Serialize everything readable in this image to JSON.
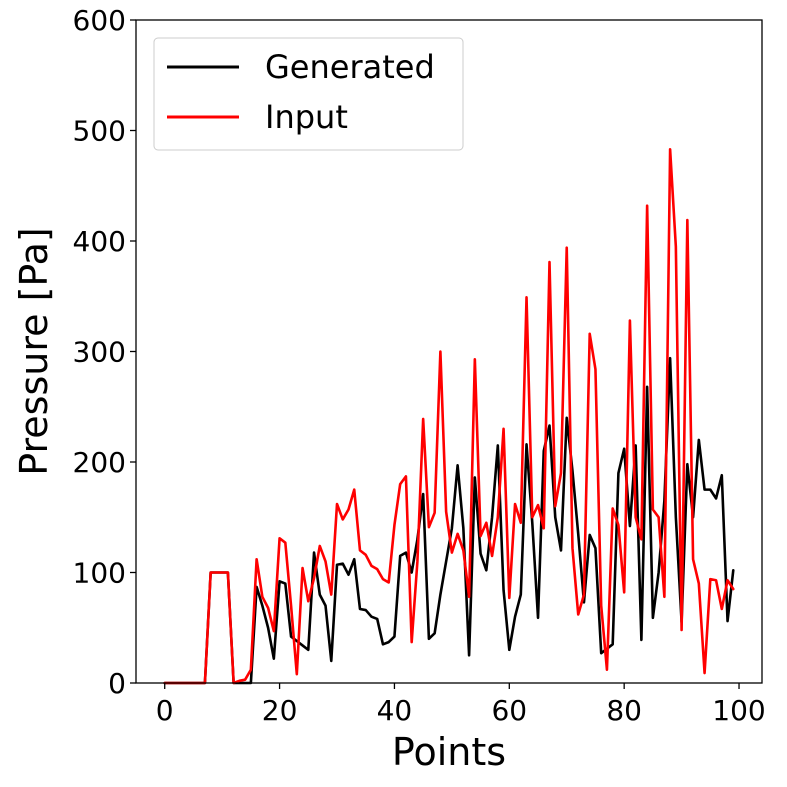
{
  "chart_data": {
    "type": "line",
    "xlabel": "Points",
    "ylabel": "Pressure [Pa]",
    "xlim": [
      -5,
      104
    ],
    "ylim": [
      0,
      600
    ],
    "xticks": [
      0,
      20,
      40,
      60,
      80,
      100
    ],
    "yticks": [
      0,
      100,
      200,
      300,
      400,
      500,
      600
    ],
    "grid": false,
    "legend_position": "top-left",
    "series": [
      {
        "name": "Generated",
        "color": "#000000",
        "x": [
          0,
          1,
          2,
          3,
          4,
          5,
          6,
          7,
          8,
          9,
          10,
          11,
          12,
          13,
          14,
          15,
          16,
          17,
          18,
          19,
          20,
          21,
          22,
          23,
          24,
          25,
          26,
          27,
          28,
          29,
          30,
          31,
          32,
          33,
          34,
          35,
          36,
          37,
          38,
          39,
          40,
          41,
          42,
          43,
          44,
          45,
          46,
          47,
          48,
          49,
          50,
          51,
          52,
          53,
          54,
          55,
          56,
          57,
          58,
          59,
          60,
          61,
          62,
          63,
          64,
          65,
          66,
          67,
          68,
          69,
          70,
          71,
          72,
          73,
          74,
          75,
          76,
          77,
          78,
          79,
          80,
          81,
          82,
          83,
          84,
          85,
          86,
          87,
          88,
          89,
          90,
          91,
          92,
          93,
          94,
          95,
          96,
          97,
          98,
          99
        ],
        "values": [
          0,
          0,
          0,
          0,
          0,
          0,
          0,
          0,
          100,
          100,
          100,
          100,
          0,
          0,
          0,
          0,
          87,
          70,
          50,
          22,
          92,
          90,
          42,
          38,
          34,
          30,
          118,
          80,
          70,
          20,
          107,
          108,
          98,
          112,
          67,
          66,
          60,
          58,
          35,
          37,
          42,
          115,
          118,
          100,
          130,
          171,
          40,
          45,
          80,
          110,
          140,
          197,
          140,
          25,
          186,
          117,
          102,
          150,
          215,
          84,
          30,
          60,
          80,
          216,
          145,
          59,
          210,
          233,
          150,
          120,
          240,
          192,
          135,
          73,
          134,
          122,
          27,
          31,
          35,
          190,
          212,
          142,
          215,
          39,
          268,
          59,
          100,
          165,
          294,
          150,
          55,
          198,
          150,
          220,
          175,
          175,
          167,
          188,
          56,
          102
        ]
      },
      {
        "name": "Input",
        "color": "#ff0000",
        "x": [
          0,
          1,
          2,
          3,
          4,
          5,
          6,
          7,
          8,
          9,
          10,
          11,
          12,
          13,
          14,
          15,
          16,
          17,
          18,
          19,
          20,
          21,
          22,
          23,
          24,
          25,
          26,
          27,
          28,
          29,
          30,
          31,
          32,
          33,
          34,
          35,
          36,
          37,
          38,
          39,
          40,
          41,
          42,
          43,
          44,
          45,
          46,
          47,
          48,
          49,
          50,
          51,
          52,
          53,
          54,
          55,
          56,
          57,
          58,
          59,
          60,
          61,
          62,
          63,
          64,
          65,
          66,
          67,
          68,
          69,
          70,
          71,
          72,
          73,
          74,
          75,
          76,
          77,
          78,
          79,
          80,
          81,
          82,
          83,
          84,
          85,
          86,
          87,
          88,
          89,
          90,
          91,
          92,
          93,
          94,
          95,
          96,
          97,
          98,
          99
        ],
        "values": [
          0,
          0,
          0,
          0,
          0,
          0,
          0,
          0,
          100,
          100,
          100,
          100,
          0,
          2,
          3,
          12,
          112,
          78,
          68,
          47,
          131,
          127,
          70,
          8,
          104,
          74,
          95,
          124,
          110,
          80,
          162,
          148,
          157,
          175,
          120,
          116,
          106,
          103,
          94,
          91,
          143,
          180,
          187,
          37,
          110,
          239,
          141,
          154,
          300,
          155,
          118,
          135,
          120,
          78,
          293,
          133,
          145,
          115,
          150,
          230,
          77,
          162,
          145,
          349,
          150,
          161,
          140,
          381,
          160,
          190,
          394,
          122,
          62,
          80,
          316,
          284,
          70,
          12,
          158,
          143,
          82,
          328,
          150,
          130,
          432,
          157,
          150,
          78,
          483,
          395,
          48,
          419,
          112,
          90,
          9,
          94,
          93,
          67,
          93,
          85
        ]
      }
    ]
  }
}
